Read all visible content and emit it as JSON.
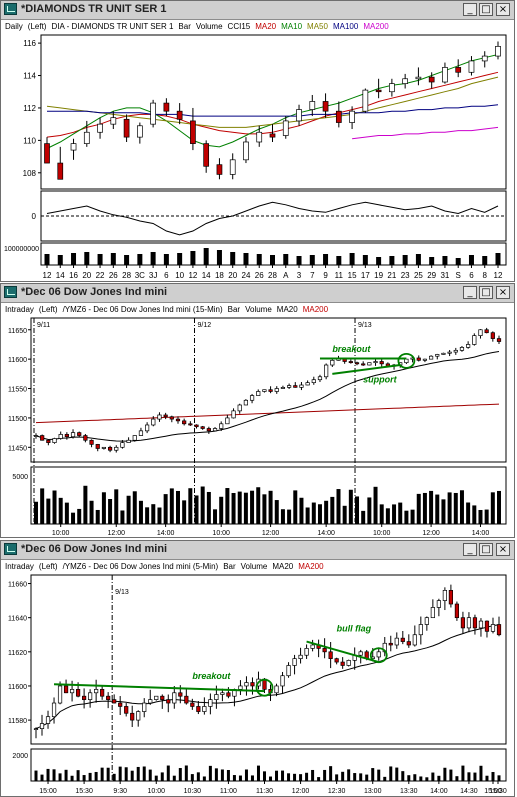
{
  "windows": [
    {
      "title": "*DIAMONDS TR UNIT SER 1",
      "legend": [
        {
          "text": "Daily",
          "color": "#000000"
        },
        {
          "text": "(Left)",
          "color": "#000000"
        },
        {
          "text": "DIA - DIAMONDS TR UNIT SER 1",
          "color": "#000000"
        },
        {
          "text": "Bar",
          "color": "#000000"
        },
        {
          "text": "Volume",
          "color": "#000000"
        },
        {
          "text": "CCI15",
          "color": "#000000"
        },
        {
          "text": "MA20",
          "color": "#c00000"
        },
        {
          "text": "MA10",
          "color": "#008000"
        },
        {
          "text": "MA50",
          "color": "#808000"
        },
        {
          "text": "MA100",
          "color": "#000080"
        },
        {
          "text": "MA200",
          "color": "#cc00cc"
        }
      ]
    },
    {
      "title": "*Dec 06  Dow Jones Ind mini",
      "legend": [
        {
          "text": "Intraday",
          "color": "#000000"
        },
        {
          "text": "(Left)",
          "color": "#000000"
        },
        {
          "text": "/YMZ6 - Dec 06  Dow Jones Ind mini  (15-Min)",
          "color": "#000000"
        },
        {
          "text": "Bar",
          "color": "#000000"
        },
        {
          "text": "Volume",
          "color": "#000000"
        },
        {
          "text": "MA20",
          "color": "#000000"
        },
        {
          "text": "MA200",
          "color": "#c00000"
        }
      ]
    },
    {
      "title": "*Dec 06  Dow Jones Ind mini",
      "legend": [
        {
          "text": "Intraday",
          "color": "#000000"
        },
        {
          "text": "(Left)",
          "color": "#000000"
        },
        {
          "text": "/YMZ6 - Dec 06  Dow Jones Ind mini  (5-Min)",
          "color": "#000000"
        },
        {
          "text": "Bar",
          "color": "#000000"
        },
        {
          "text": "Volume",
          "color": "#000000"
        },
        {
          "text": "MA20",
          "color": "#000000"
        },
        {
          "text": "MA200",
          "color": "#c00000"
        }
      ]
    }
  ],
  "window_buttons": [
    "_",
    "□",
    "×"
  ],
  "colors": {
    "up": "#ffffff",
    "down": "#c00000",
    "ma10": "#008000",
    "ma20": "#c00000",
    "ma50": "#808000",
    "ma100": "#000080",
    "ma200": "#cc00cc",
    "intra_ma20": "#000000",
    "intra_ma200": "#a00000",
    "annotation": "#008000"
  },
  "chart_data": [
    {
      "type": "candlestick",
      "xlabels": [
        "12",
        "14",
        "16",
        "20",
        "22",
        "26",
        "28",
        "3C",
        "3J",
        "6",
        "10",
        "12",
        "14",
        "18",
        "20",
        "24",
        "26",
        "28",
        "A",
        "3",
        "7",
        "9",
        "11",
        "15",
        "17",
        "19",
        "21",
        "23",
        "25",
        "29",
        "31",
        "S",
        "6",
        "8",
        "12"
      ],
      "yticks": [
        108,
        110,
        112,
        114,
        116
      ],
      "ylim": [
        107,
        116.5
      ],
      "series": [
        {
          "name": "MA20",
          "values": [
            110.2,
            110.3,
            110.5,
            110.8,
            111.0,
            111.3,
            111.5,
            111.6,
            111.6,
            111.5,
            111.3,
            111.0,
            110.8,
            110.6,
            110.5,
            110.4,
            110.4,
            110.5,
            110.7,
            110.9,
            111.2,
            111.5,
            111.7,
            111.9,
            112.1,
            112.4,
            112.6,
            112.8,
            113.0,
            113.2,
            113.4,
            113.6,
            113.8,
            114.0,
            114.2
          ]
        },
        {
          "name": "MA10",
          "values": [
            109.5,
            109.9,
            110.4,
            110.9,
            111.4,
            111.8,
            112.0,
            112.0,
            111.7,
            111.2,
            110.6,
            110.0,
            109.7,
            109.6,
            109.9,
            110.3,
            110.7,
            111.0,
            111.4,
            111.7,
            111.9,
            112.1,
            112.3,
            112.6,
            112.9,
            113.2,
            113.4,
            113.5,
            113.7,
            114.0,
            114.3,
            114.6,
            114.9,
            115.1,
            115.3
          ]
        },
        {
          "name": "MA50",
          "values": [
            112.1,
            112.0,
            111.9,
            111.8,
            111.7,
            111.6,
            111.5,
            111.4,
            111.3,
            111.2,
            111.1,
            111.0,
            110.9,
            110.8,
            110.8,
            110.8,
            110.9,
            111.0,
            111.1,
            111.2,
            111.3,
            111.4,
            111.5,
            111.6,
            111.8,
            112.0,
            112.2,
            112.4,
            112.6,
            112.8,
            113.0,
            113.2,
            113.5,
            113.7,
            113.9
          ]
        },
        {
          "name": "MA100",
          "values": [
            111.8,
            111.8,
            111.8,
            111.8,
            111.7,
            111.7,
            111.7,
            111.7,
            111.6,
            111.6,
            111.6,
            111.5,
            111.5,
            111.5,
            111.5,
            111.5,
            111.5,
            111.5,
            111.5,
            111.5,
            111.6,
            111.6,
            111.6,
            111.7,
            111.7,
            111.7,
            111.8,
            111.8,
            111.9,
            111.9,
            112.0,
            112.0,
            112.1,
            112.1,
            112.2
          ]
        },
        {
          "name": "MA200",
          "values": [
            null,
            null,
            null,
            null,
            null,
            null,
            null,
            null,
            null,
            null,
            null,
            null,
            null,
            null,
            null,
            null,
            null,
            null,
            null,
            null,
            null,
            null,
            null,
            110.1,
            110.2,
            110.3,
            110.3,
            110.4,
            110.4,
            110.5,
            110.5,
            110.6,
            110.6,
            110.7,
            110.8
          ]
        }
      ],
      "bars": [
        [
          109.8,
          109.3,
          110.2,
          108.6
        ],
        [
          108.6,
          109.6,
          108.3,
          107.6
        ],
        [
          109.4,
          110.1,
          108.8,
          109.8
        ],
        [
          109.8,
          111.2,
          109.6,
          110.5
        ],
        [
          110.5,
          111.4,
          110.1,
          111.0
        ],
        [
          111.0,
          111.8,
          110.7,
          111.4
        ],
        [
          111.3,
          111.6,
          109.9,
          110.2
        ],
        [
          110.2,
          111.1,
          109.8,
          110.9
        ],
        [
          111.0,
          112.5,
          110.8,
          112.3
        ],
        [
          112.3,
          112.6,
          111.5,
          111.8
        ],
        [
          111.8,
          112.3,
          111.0,
          111.3
        ],
        [
          111.2,
          112.0,
          109.4,
          109.8
        ],
        [
          109.8,
          110.0,
          108.0,
          108.4
        ],
        [
          108.5,
          108.9,
          107.6,
          107.9
        ],
        [
          107.9,
          109.2,
          107.6,
          108.8
        ],
        [
          108.8,
          110.2,
          108.6,
          109.9
        ],
        [
          109.9,
          110.9,
          109.6,
          110.5
        ],
        [
          110.4,
          111.0,
          109.9,
          110.2
        ],
        [
          110.3,
          111.5,
          110.1,
          111.2
        ],
        [
          111.2,
          112.2,
          110.9,
          111.9
        ],
        [
          111.9,
          112.8,
          111.5,
          112.4
        ],
        [
          112.4,
          112.9,
          111.4,
          111.8
        ],
        [
          111.8,
          112.4,
          110.8,
          111.1
        ],
        [
          111.1,
          112.1,
          110.7,
          111.8
        ],
        [
          111.8,
          113.2,
          111.7,
          113.1
        ],
        [
          113.1,
          113.8,
          112.6,
          113.0
        ],
        [
          113.0,
          113.8,
          112.7,
          113.5
        ],
        [
          113.5,
          114.1,
          113.2,
          113.8
        ],
        [
          113.8,
          114.5,
          113.4,
          113.9
        ],
        [
          113.9,
          114.2,
          113.2,
          113.6
        ],
        [
          113.6,
          114.8,
          113.5,
          114.5
        ],
        [
          114.5,
          115.0,
          113.9,
          114.2
        ],
        [
          114.2,
          115.2,
          114.0,
          114.9
        ],
        [
          114.9,
          115.5,
          114.5,
          115.2
        ],
        [
          115.2,
          116.1,
          115.0,
          115.8
        ]
      ],
      "cci": [
        20,
        40,
        60,
        80,
        40,
        10,
        -10,
        -40,
        -60,
        -120,
        -150,
        -120,
        -60,
        -20,
        0,
        40,
        80,
        110,
        90,
        60,
        40,
        30,
        60,
        90,
        110,
        90,
        70,
        50,
        60,
        80,
        40,
        20,
        60,
        30,
        80
      ],
      "cci_ticks": [
        0
      ],
      "volume_ticks": [
        "100000000"
      ],
      "volume": [
        0.55,
        0.5,
        0.6,
        0.65,
        0.55,
        0.6,
        0.5,
        0.55,
        0.65,
        0.55,
        0.6,
        0.7,
        0.85,
        0.75,
        0.65,
        0.6,
        0.55,
        0.5,
        0.55,
        0.45,
        0.5,
        0.55,
        0.45,
        0.6,
        0.5,
        0.4,
        0.45,
        0.5,
        0.55,
        0.4,
        0.45,
        0.35,
        0.5,
        0.45,
        0.6
      ]
    },
    {
      "type": "candlestick",
      "xlabels": [
        "10:00",
        "12:00",
        "14:00",
        "10:00",
        "12:00",
        "14:00",
        "10:00",
        "12:00",
        "14:00"
      ],
      "yticks": [
        11450,
        11500,
        11550,
        11600,
        11650
      ],
      "ylim": [
        11425,
        11670
      ],
      "session_labels": [
        "9/11",
        "9/12",
        "9/13"
      ],
      "annotations": [
        {
          "text": "breakout"
        },
        {
          "text": "support"
        }
      ],
      "volume_ticks": [
        "5000"
      ],
      "series": [
        {
          "name": "MA20"
        },
        {
          "name": "MA200"
        }
      ],
      "path": [
        11470,
        11462,
        11458,
        11465,
        11472,
        11468,
        11475,
        11470,
        11462,
        11455,
        11448,
        11450,
        11445,
        11450,
        11458,
        11462,
        11470,
        11478,
        11488,
        11498,
        11505,
        11502,
        11498,
        11495,
        11490,
        11488,
        11485,
        11482,
        11478,
        11482,
        11490,
        11500,
        11512,
        11522,
        11530,
        11538,
        11545,
        11548,
        11545,
        11550,
        11552,
        11555,
        11552,
        11556,
        11560,
        11565,
        11570,
        11590,
        11598,
        11600,
        11596,
        11594,
        11592,
        11590,
        11594,
        11596,
        11592,
        11588,
        11590,
        11594,
        11600,
        11602,
        11598,
        11600,
        11605,
        11608,
        11610,
        11612,
        11615,
        11620,
        11625,
        11640,
        11650,
        11645,
        11635,
        11630
      ]
    },
    {
      "type": "candlestick",
      "xlabels": [
        "15:00",
        "15:30",
        "9:30",
        "10:00",
        "10:30",
        "11:00",
        "11:30",
        "12:00",
        "12:30",
        "13:00",
        "13:30",
        "14:00",
        "14:30",
        "15:00",
        "15:30"
      ],
      "yticks": [
        11580,
        11600,
        11620,
        11640,
        11660
      ],
      "ylim": [
        11566,
        11665
      ],
      "session_labels": [
        "9/13"
      ],
      "annotations": [
        {
          "text": "breakout"
        },
        {
          "text": "bull flag"
        }
      ],
      "volume_ticks": [
        "2000"
      ],
      "series": [
        {
          "name": "MA20"
        },
        {
          "name": "MA200"
        }
      ],
      "path": [
        11575,
        11578,
        11582,
        11590,
        11600,
        11596,
        11598,
        11594,
        11592,
        11596,
        11598,
        11594,
        11592,
        11590,
        11588,
        11584,
        11580,
        11585,
        11590,
        11592,
        11594,
        11592,
        11590,
        11596,
        11594,
        11590,
        11588,
        11585,
        11588,
        11592,
        11595,
        11596,
        11594,
        11598,
        11600,
        11602,
        11600,
        11604,
        11598,
        11596,
        11600,
        11606,
        11612,
        11616,
        11618,
        11622,
        11624,
        11622,
        11620,
        11616,
        11614,
        11612,
        11615,
        11618,
        11620,
        11616,
        11617,
        11620,
        11625,
        11624,
        11628,
        11626,
        11624,
        11630,
        11636,
        11640,
        11646,
        11650,
        11656,
        11648,
        11640,
        11634,
        11640,
        11634,
        11638,
        11632,
        11636,
        11630
      ]
    }
  ]
}
